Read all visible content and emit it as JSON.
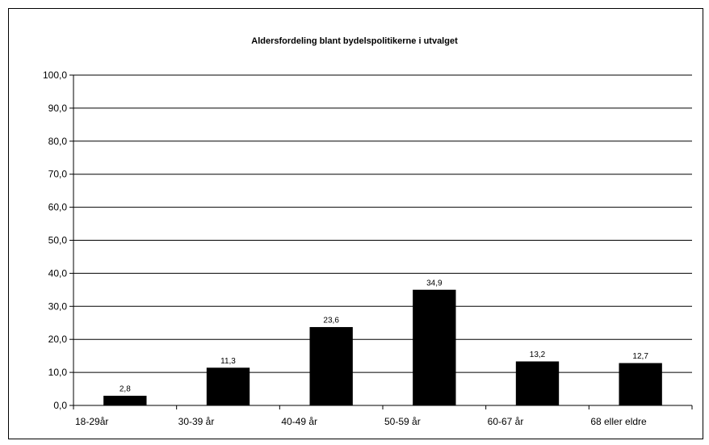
{
  "chart_data": {
    "type": "bar",
    "title": "Aldersfordeling blant bydelspolitikerne i utvalget",
    "xlabel": "",
    "ylabel": "",
    "categories": [
      "18-29år",
      "30-39 år",
      "40-49 år",
      "50-59 år",
      "60-67 år",
      "68 eller eldre"
    ],
    "values": [
      2.8,
      11.3,
      23.6,
      34.9,
      13.2,
      12.7
    ],
    "value_labels": [
      "2,8",
      "11,3",
      "23,6",
      "34,9",
      "13,2",
      "12,7"
    ],
    "ylim": [
      0,
      100
    ],
    "yticks": [
      "0,0",
      "10,0",
      "20,0",
      "30,0",
      "40,0",
      "50,0",
      "60,0",
      "70,0",
      "80,0",
      "90,0",
      "100,0"
    ],
    "grid": true,
    "legend": "none",
    "bar_color": "#000000"
  }
}
